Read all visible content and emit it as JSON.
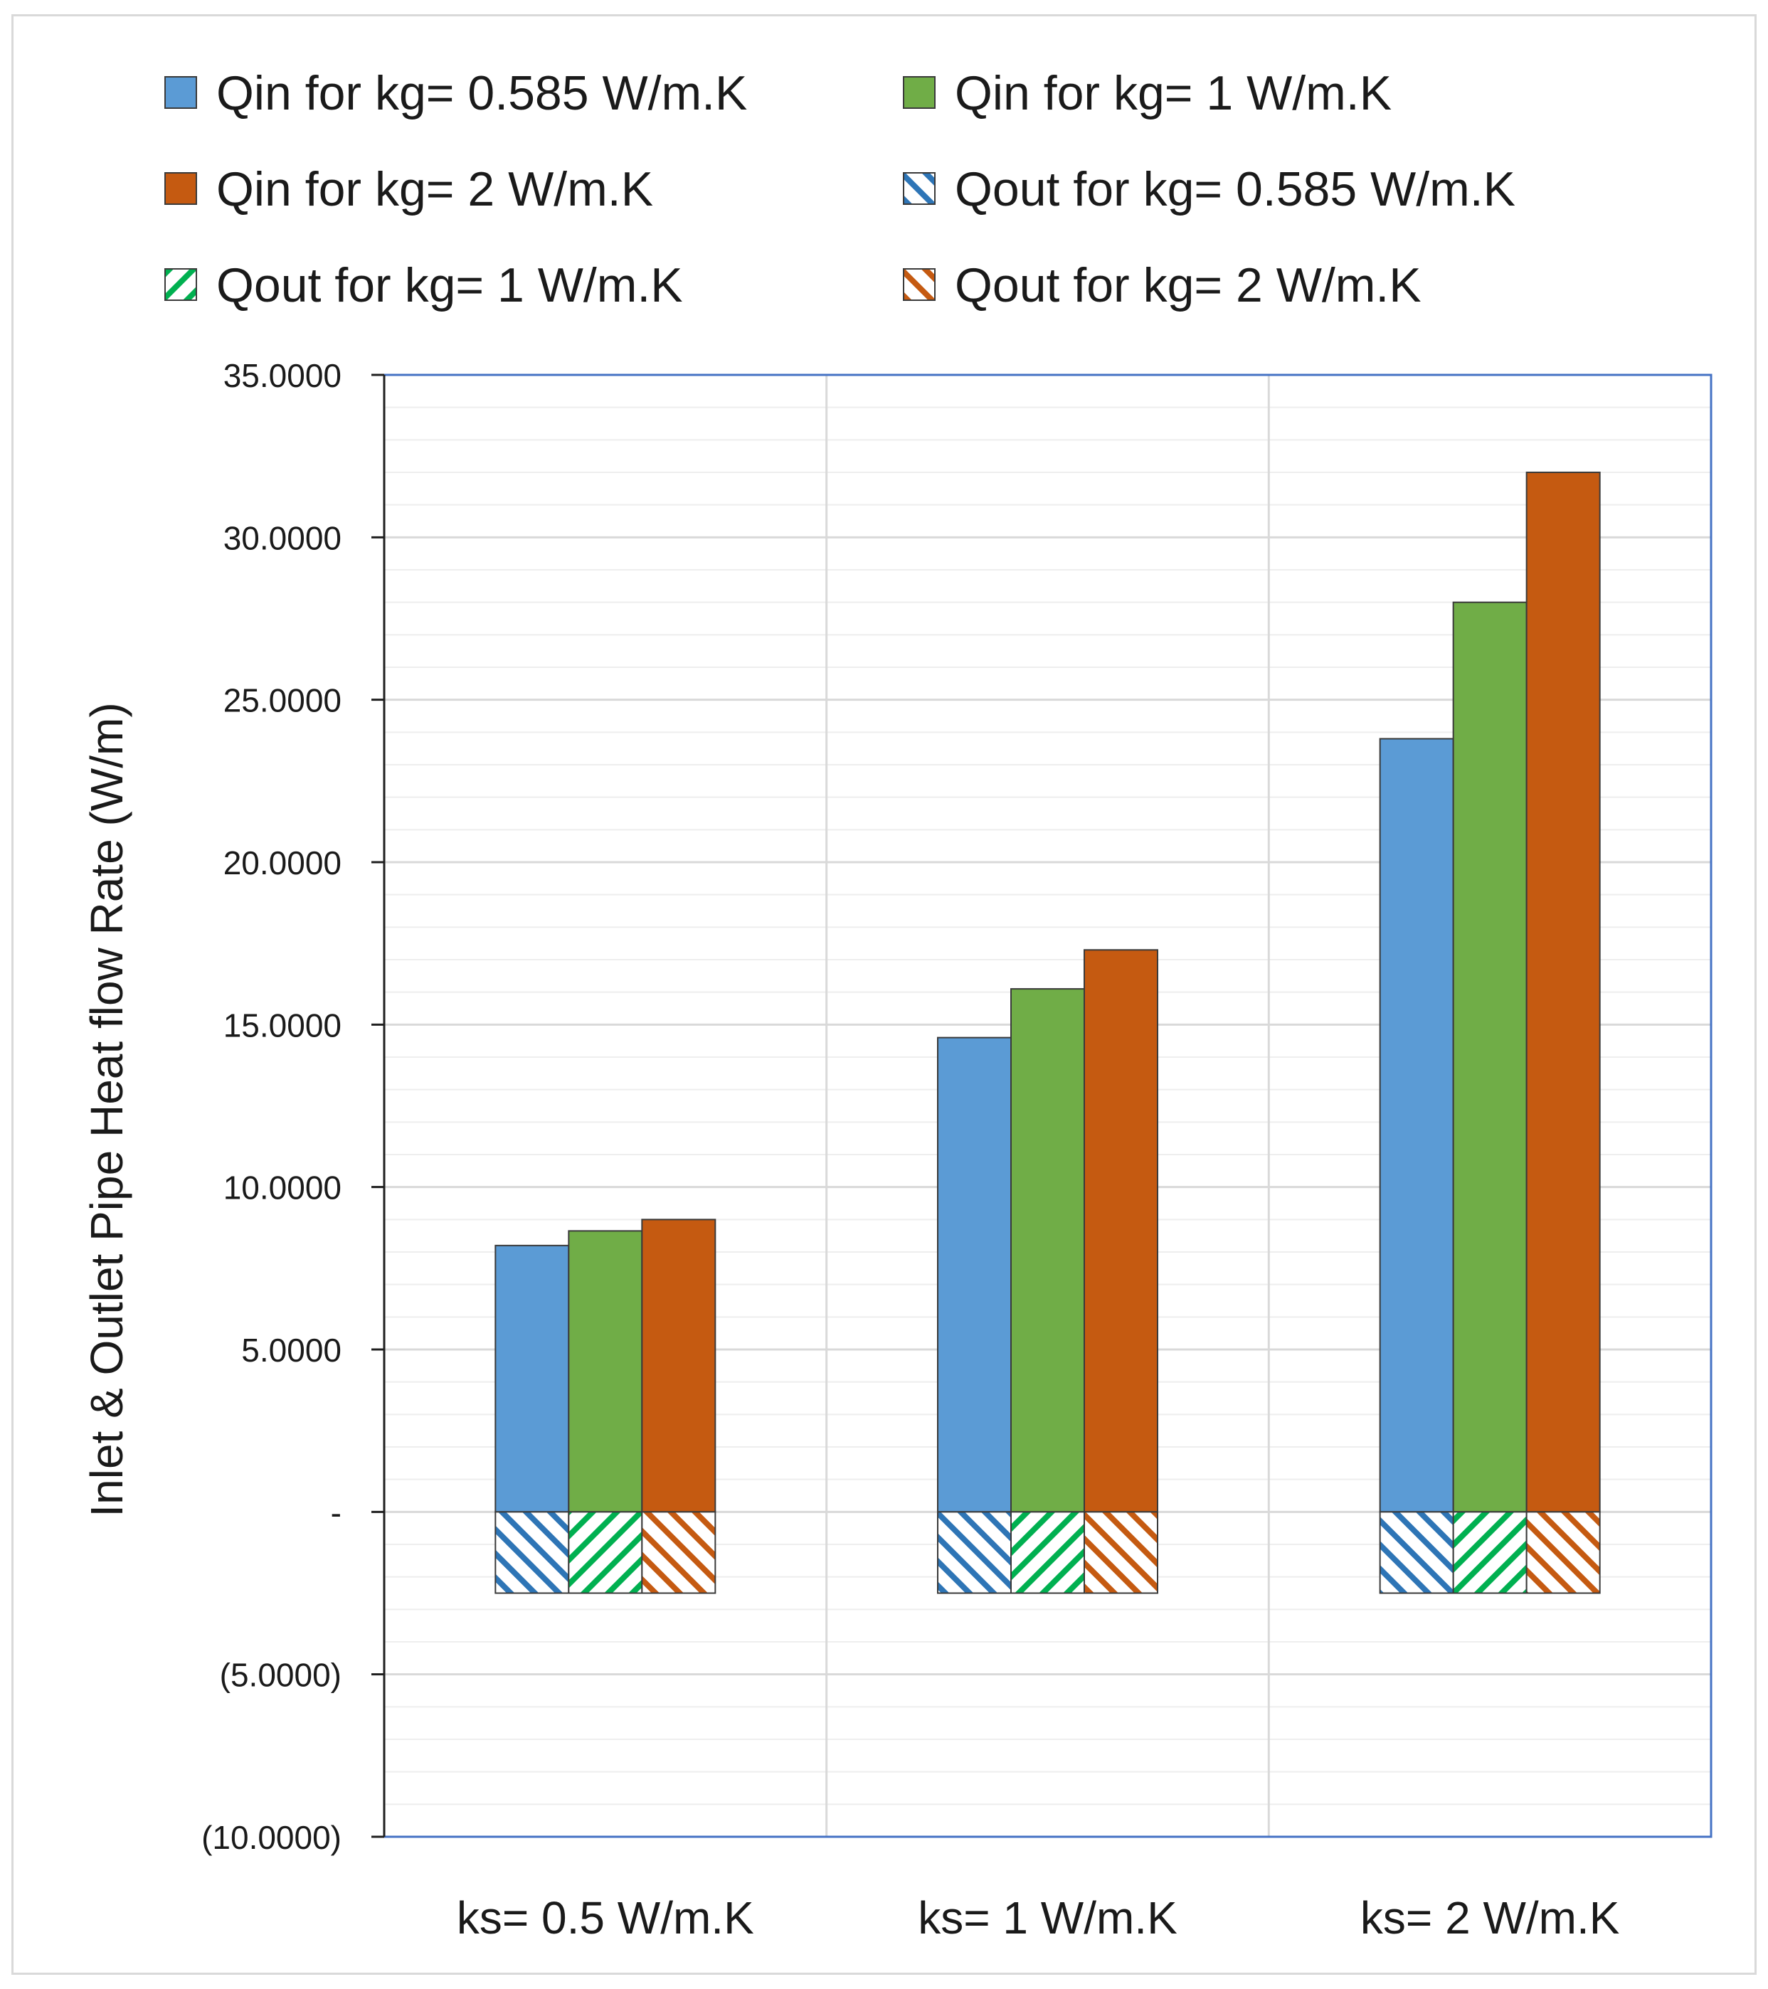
{
  "chart_data": {
    "type": "bar",
    "ylabel": "Inlet & Outlet Pipe Heat flow Rate (W/m)",
    "xlabel": "",
    "ylim": [
      -10,
      35
    ],
    "ytick_step": 5,
    "yticks": [
      {
        "value": 35,
        "label": "35.0000"
      },
      {
        "value": 30,
        "label": "30.0000"
      },
      {
        "value": 25,
        "label": "25.0000"
      },
      {
        "value": 20,
        "label": "20.0000"
      },
      {
        "value": 15,
        "label": "15.0000"
      },
      {
        "value": 10,
        "label": "10.0000"
      },
      {
        "value": 5,
        "label": "5.0000"
      },
      {
        "value": 0,
        "label": "-"
      },
      {
        "value": -5,
        "label": "(5.0000)"
      },
      {
        "value": -10,
        "label": "(10.0000)"
      }
    ],
    "categories": [
      "ks= 0.5 W/m.K",
      "ks= 1 W/m.K",
      "ks= 2 W/m.K"
    ],
    "grid": true,
    "legend_position": "top",
    "series": [
      {
        "name": "Qin  for kg= 0.585 W/m.K",
        "color": "#5b9bd5",
        "hatched": false,
        "values": [
          8.2,
          14.6,
          23.8
        ]
      },
      {
        "name": "Qin  for kg= 1 W/m.K",
        "color": "#70ad47",
        "hatched": false,
        "values": [
          8.65,
          16.1,
          28.0
        ]
      },
      {
        "name": "Qin  for kg= 2 W/m.K",
        "color": "#c55a11",
        "hatched": false,
        "values": [
          9.0,
          17.3,
          32.0
        ]
      },
      {
        "name": "Qout  for kg= 0.585 W/m.K",
        "color": "#2e75b6",
        "hatched": true,
        "values": [
          -2.5,
          -2.5,
          -2.5
        ]
      },
      {
        "name": "Qout  for kg= 1 W/m.K",
        "color": "#00b050",
        "hatched": true,
        "values": [
          -2.5,
          -2.5,
          -2.5
        ]
      },
      {
        "name": "Qout  for kg= 2 W/m.K",
        "color": "#c55a11",
        "hatched": true,
        "values": [
          -2.5,
          -2.5,
          -2.5
        ]
      }
    ],
    "legend_order": [
      0,
      1,
      2,
      3,
      4,
      5
    ]
  }
}
